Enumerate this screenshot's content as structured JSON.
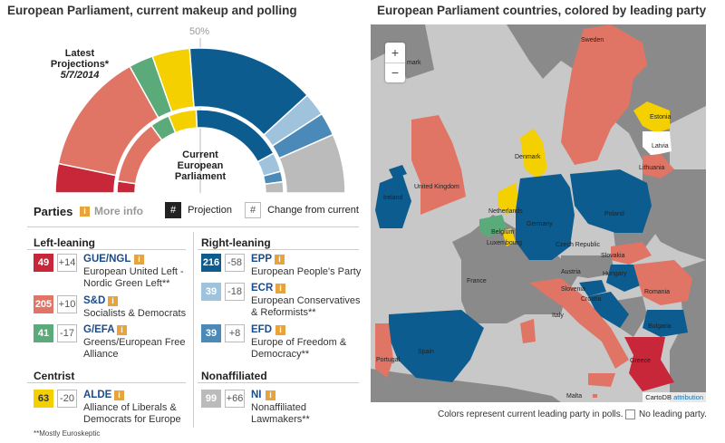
{
  "left": {
    "title": "European Parliament, current makeup and polling",
    "fifty_pct": "50%",
    "latest_projections_title": "Latest Projections*",
    "latest_projections_date": "5/7/2014",
    "current_ep_label": "Current European Parliament",
    "parties_label": "Parties",
    "more_info": "More info",
    "projection_legend_box": "#",
    "projection_legend_label": "Projection",
    "change_legend_box": "#",
    "change_legend_label": "Change from current",
    "footnote": "**Mostly Euroskeptic"
  },
  "groups": {
    "left_leaning": "Left-leaning",
    "right_leaning": "Right-leaning",
    "centrist": "Centrist",
    "nonaffiliated": "Nonaffiliated"
  },
  "parties": [
    {
      "code": "GUE/NGL",
      "name": "European United Left - Nordic Green Left**",
      "seats": "49",
      "change": "+14",
      "color": "#c8273a"
    },
    {
      "code": "S&D",
      "name": "Socialists & Democrats",
      "seats": "205",
      "change": "+10",
      "color": "#e07566"
    },
    {
      "code": "G/EFA",
      "name": "Greens/European Free Alliance",
      "seats": "41",
      "change": "-17",
      "color": "#5aaa7a"
    },
    {
      "code": "ALDE",
      "name": "Alliance of Liberals & Democrats for Europe",
      "seats": "63",
      "change": "-20",
      "color": "#f4d000"
    },
    {
      "code": "EPP",
      "name": "European People's Party",
      "seats": "216",
      "change": "-58",
      "color": "#0c5c8f"
    },
    {
      "code": "ECR",
      "name": "European Conservatives & Reformists**",
      "seats": "39",
      "change": "-18",
      "color": "#9fc3dd"
    },
    {
      "code": "EFD",
      "name": "Europe of Freedom & Democracy**",
      "seats": "39",
      "change": "+8",
      "color": "#4b8ab8"
    },
    {
      "code": "NI",
      "name": "Nonaffiliated Lawmakers**",
      "seats": "99",
      "change": "+66",
      "color": "#bbbbbb"
    }
  ],
  "projection_seats": [
    49,
    205,
    41,
    63,
    216,
    39,
    39,
    99
  ],
  "current_seats": [
    35,
    195,
    58,
    83,
    274,
    57,
    31,
    33
  ],
  "map": {
    "title": "European Parliament countries, colored by leading party",
    "zoom_in": "+",
    "zoom_out": "−",
    "attribution_prefix": "CartoDB",
    "attribution_link": "attribution",
    "legend_text": "Colors represent current leading party in polls.",
    "no_leader_label": "No leading party.",
    "sea_color": "#c8c8c8",
    "non_eu_color": "#8a8a8a",
    "labels": {
      "sweden": "Sweden",
      "estonia": "Estonia",
      "latvia": "Latvia",
      "lithuania": "Lithuania",
      "denmark": "Denmark",
      "uk": "United Kingdom",
      "ireland": "Ireland",
      "netherlands": "Netherlands",
      "belgium": "Belgium",
      "luxembourg": "Luxembourg",
      "germany": "Germany",
      "poland": "Poland",
      "czech": "Czech Republic",
      "slovakia": "Slovakia",
      "austria": "Austria",
      "hungary": "Hungary",
      "slovenia": "Slovenia",
      "croatia": "Croatia",
      "romania": "Romania",
      "france": "France",
      "italy": "Italy",
      "bulgaria": "Bulgaria",
      "spain": "Spain",
      "portugal": "Portugal",
      "greece": "Greece",
      "malta": "Malta",
      "mark": "mark"
    }
  }
}
